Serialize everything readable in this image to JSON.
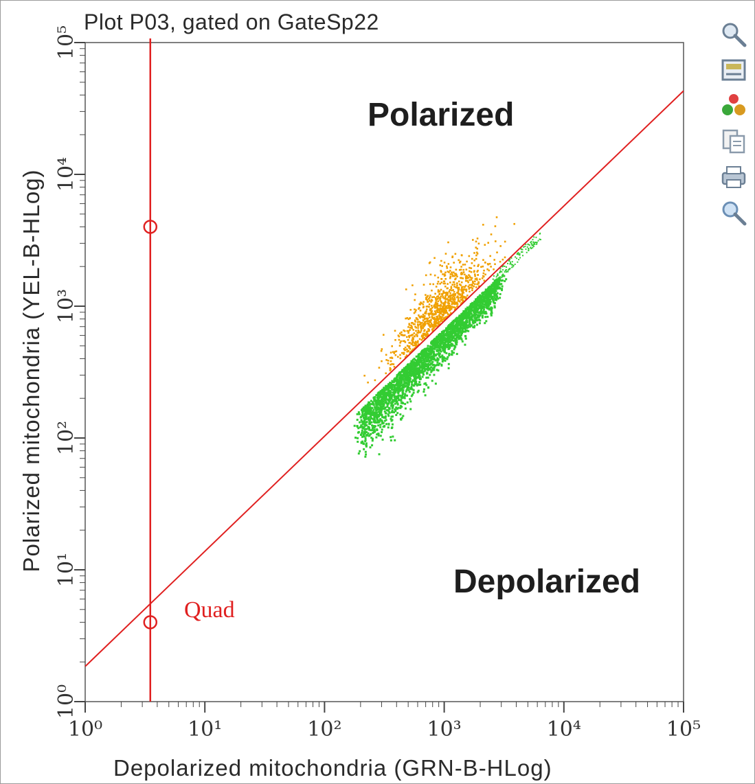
{
  "chart_data": {
    "type": "scatter",
    "title": "Plot P03, gated on GateSp22",
    "xlabel": "Depolarized mitochondria (GRN-B-HLog)",
    "ylabel": "Polarized mitochondria (YEL-B-HLog)",
    "x_scale": "log",
    "y_scale": "log",
    "xlim": [
      1,
      100000
    ],
    "ylim": [
      1,
      100000
    ],
    "x_ticks": [
      "10⁰",
      "10¹",
      "10²",
      "10³",
      "10⁴",
      "10⁵"
    ],
    "y_ticks": [
      "10⁰",
      "10¹",
      "10²",
      "10³",
      "10⁴",
      "10⁵"
    ],
    "annotations": [
      "Polarized",
      "Depolarized"
    ],
    "quadrant": {
      "label": "Quad",
      "vertical_line_x": 3.5,
      "diagonal_line": [
        [
          1,
          1.85
        ],
        [
          100000,
          43000
        ]
      ],
      "handles": [
        [
          3.5,
          4000
        ],
        [
          3.5,
          4
        ]
      ]
    },
    "series": [
      {
        "color": "#f0a000",
        "cluster_center": [
          900,
          1300
        ],
        "point_count": 900
      },
      {
        "color": "#33cc33",
        "cluster_center": [
          800,
          550
        ],
        "point_count": 2600
      }
    ]
  },
  "toolbar": {
    "icons": [
      "zoom-icon",
      "image-icon",
      "population-icon",
      "copy-icon",
      "print-icon",
      "magnifier-icon"
    ]
  },
  "colors": {
    "gate": "#e02020",
    "polarized_population": "#f0a000",
    "depolarized_population": "#33cc33"
  }
}
